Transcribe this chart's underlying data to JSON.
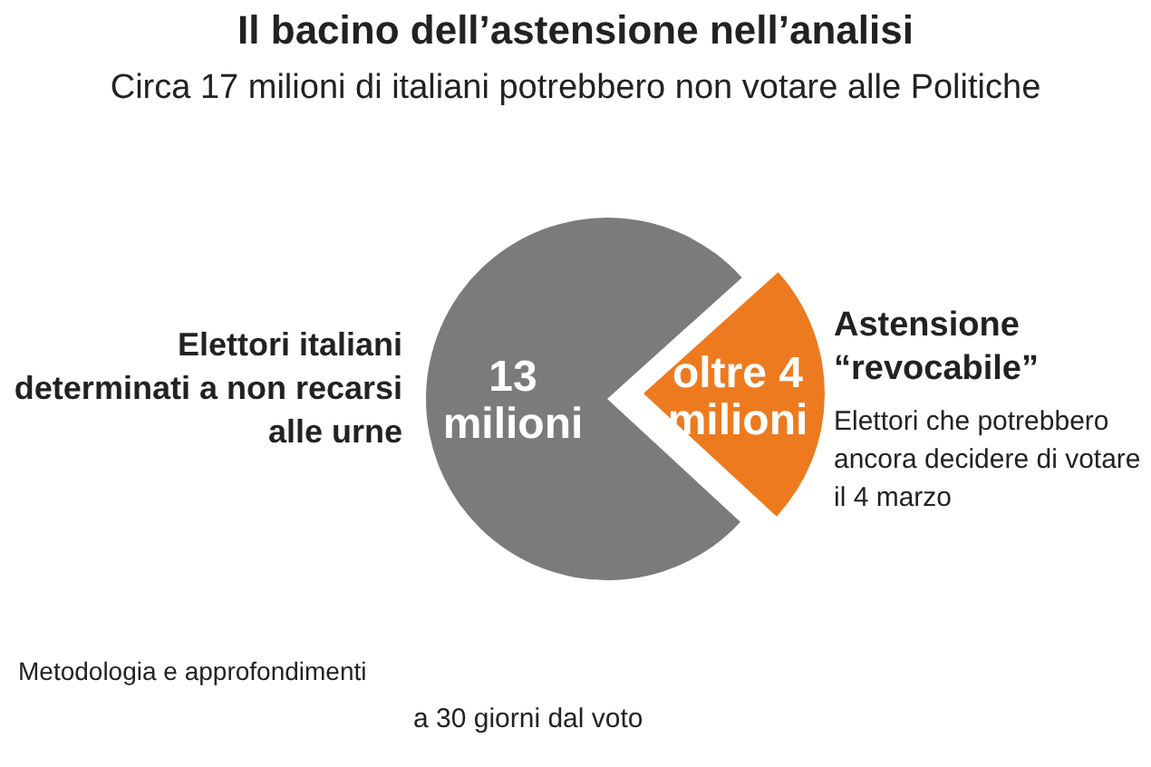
{
  "chart_data": {
    "type": "pie",
    "title": "Il bacino dell’astensione nell’analisi",
    "subtitle": "Circa 17 milioni di italiani potrebbero non votare alle Politiche",
    "categories": [
      "Elettori italiani determinati a non recarsi alle urne",
      "Astensione “revocabile”"
    ],
    "values": [
      13,
      4
    ],
    "value_labels": [
      "13 milioni",
      "oltre 4 milioni"
    ],
    "colors": [
      "#7b7b7b",
      "#ee7a1f"
    ],
    "annotations": [
      "Elettori che potrebbero ancora decidere di votare il 4 marzo",
      "Metodologia e approfondimenti",
      "a 30 giorni dal voto"
    ]
  }
}
